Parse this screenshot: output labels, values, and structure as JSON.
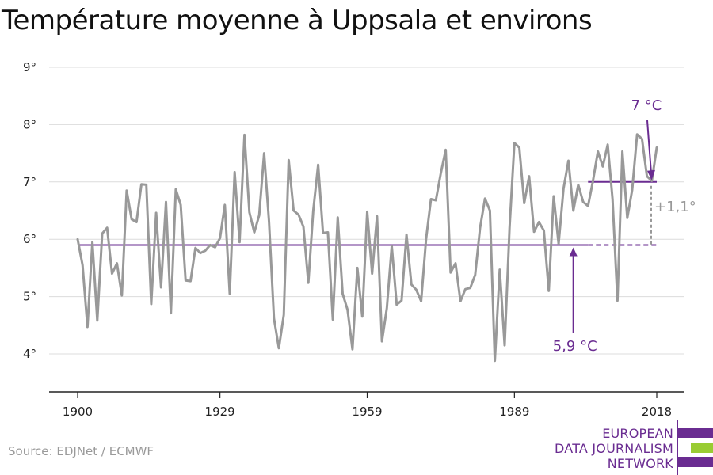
{
  "title": "Température moyenne à Uppsala et environs",
  "source": "Source: EDJNet / ECMWF",
  "logo": {
    "lines": [
      "EUROPEAN",
      "DATA JOURNALISM",
      "NETWORK"
    ],
    "colors": {
      "purple": "#6a2c91",
      "green": "#99cc33"
    }
  },
  "chart_data": {
    "type": "line",
    "title": "Température moyenne à Uppsala et environs",
    "xlabel": "",
    "ylabel": "",
    "xlim": [
      1900,
      2018
    ],
    "ylim": [
      3.5,
      9
    ],
    "x_ticks": [
      {
        "value": 1900,
        "label": "1900"
      },
      {
        "value": 1929,
        "label": "1929"
      },
      {
        "value": 1959,
        "label": "1959"
      },
      {
        "value": 1989,
        "label": "1989"
      },
      {
        "value": 2018,
        "label": "2018"
      }
    ],
    "y_ticks": [
      {
        "value": 4,
        "label": "4°"
      },
      {
        "value": 5,
        "label": "5°"
      },
      {
        "value": 6,
        "label": "6°"
      },
      {
        "value": 7,
        "label": "7°"
      },
      {
        "value": 8,
        "label": "8°"
      },
      {
        "value": 9,
        "label": "9°"
      }
    ],
    "grid": "horizontal",
    "series": [
      {
        "color": "#999999",
        "x_start": 1900,
        "values": [
          6.0,
          5.55,
          4.47,
          5.95,
          4.58,
          6.1,
          6.2,
          5.4,
          5.58,
          5.02,
          6.85,
          6.35,
          6.3,
          6.96,
          6.95,
          4.87,
          6.46,
          5.16,
          6.65,
          4.71,
          6.87,
          6.6,
          5.28,
          5.27,
          5.85,
          5.76,
          5.8,
          5.9,
          5.86,
          6.02,
          6.6,
          5.05,
          7.17,
          5.95,
          7.82,
          6.47,
          6.12,
          6.42,
          7.5,
          6.3,
          4.62,
          4.1,
          4.68,
          7.38,
          6.5,
          6.43,
          6.22,
          5.24,
          6.5,
          7.3,
          6.11,
          6.12,
          4.6,
          6.38,
          5.05,
          4.77,
          4.08,
          5.5,
          4.65,
          6.48,
          5.4,
          6.4,
          4.22,
          4.8,
          5.88,
          4.86,
          4.93,
          6.08,
          5.21,
          5.12,
          4.92,
          6.0,
          6.7,
          6.68,
          7.15,
          7.56,
          5.42,
          5.58,
          4.92,
          5.13,
          5.15,
          5.38,
          6.2,
          6.71,
          6.5,
          3.88,
          5.47,
          4.15,
          6.2,
          7.68,
          7.6,
          6.63,
          7.1,
          6.13,
          6.3,
          6.15,
          5.1,
          6.75,
          5.92,
          6.88,
          7.37,
          6.5,
          6.95,
          6.65,
          6.58,
          7.02,
          7.53,
          7.27,
          7.65,
          6.7,
          4.93,
          7.53,
          6.37,
          6.86,
          7.83,
          7.75,
          7.1,
          7.02,
          7.6
        ]
      }
    ],
    "reference_lines": [
      {
        "label": "5,9 °C",
        "value": 5.9,
        "x_range": [
          1900,
          2018
        ],
        "dashed_from": 2004,
        "color": "#6a2c91"
      },
      {
        "label": "7 °C",
        "value": 7.0,
        "x_range": [
          2004,
          2018
        ],
        "color": "#6a2c91"
      }
    ],
    "annotations": [
      {
        "text": "5,9 °C",
        "color": "#6a2c91"
      },
      {
        "text": "7 °C",
        "color": "#6a2c91"
      },
      {
        "text": "+1,1°",
        "color": "#999999"
      }
    ]
  }
}
